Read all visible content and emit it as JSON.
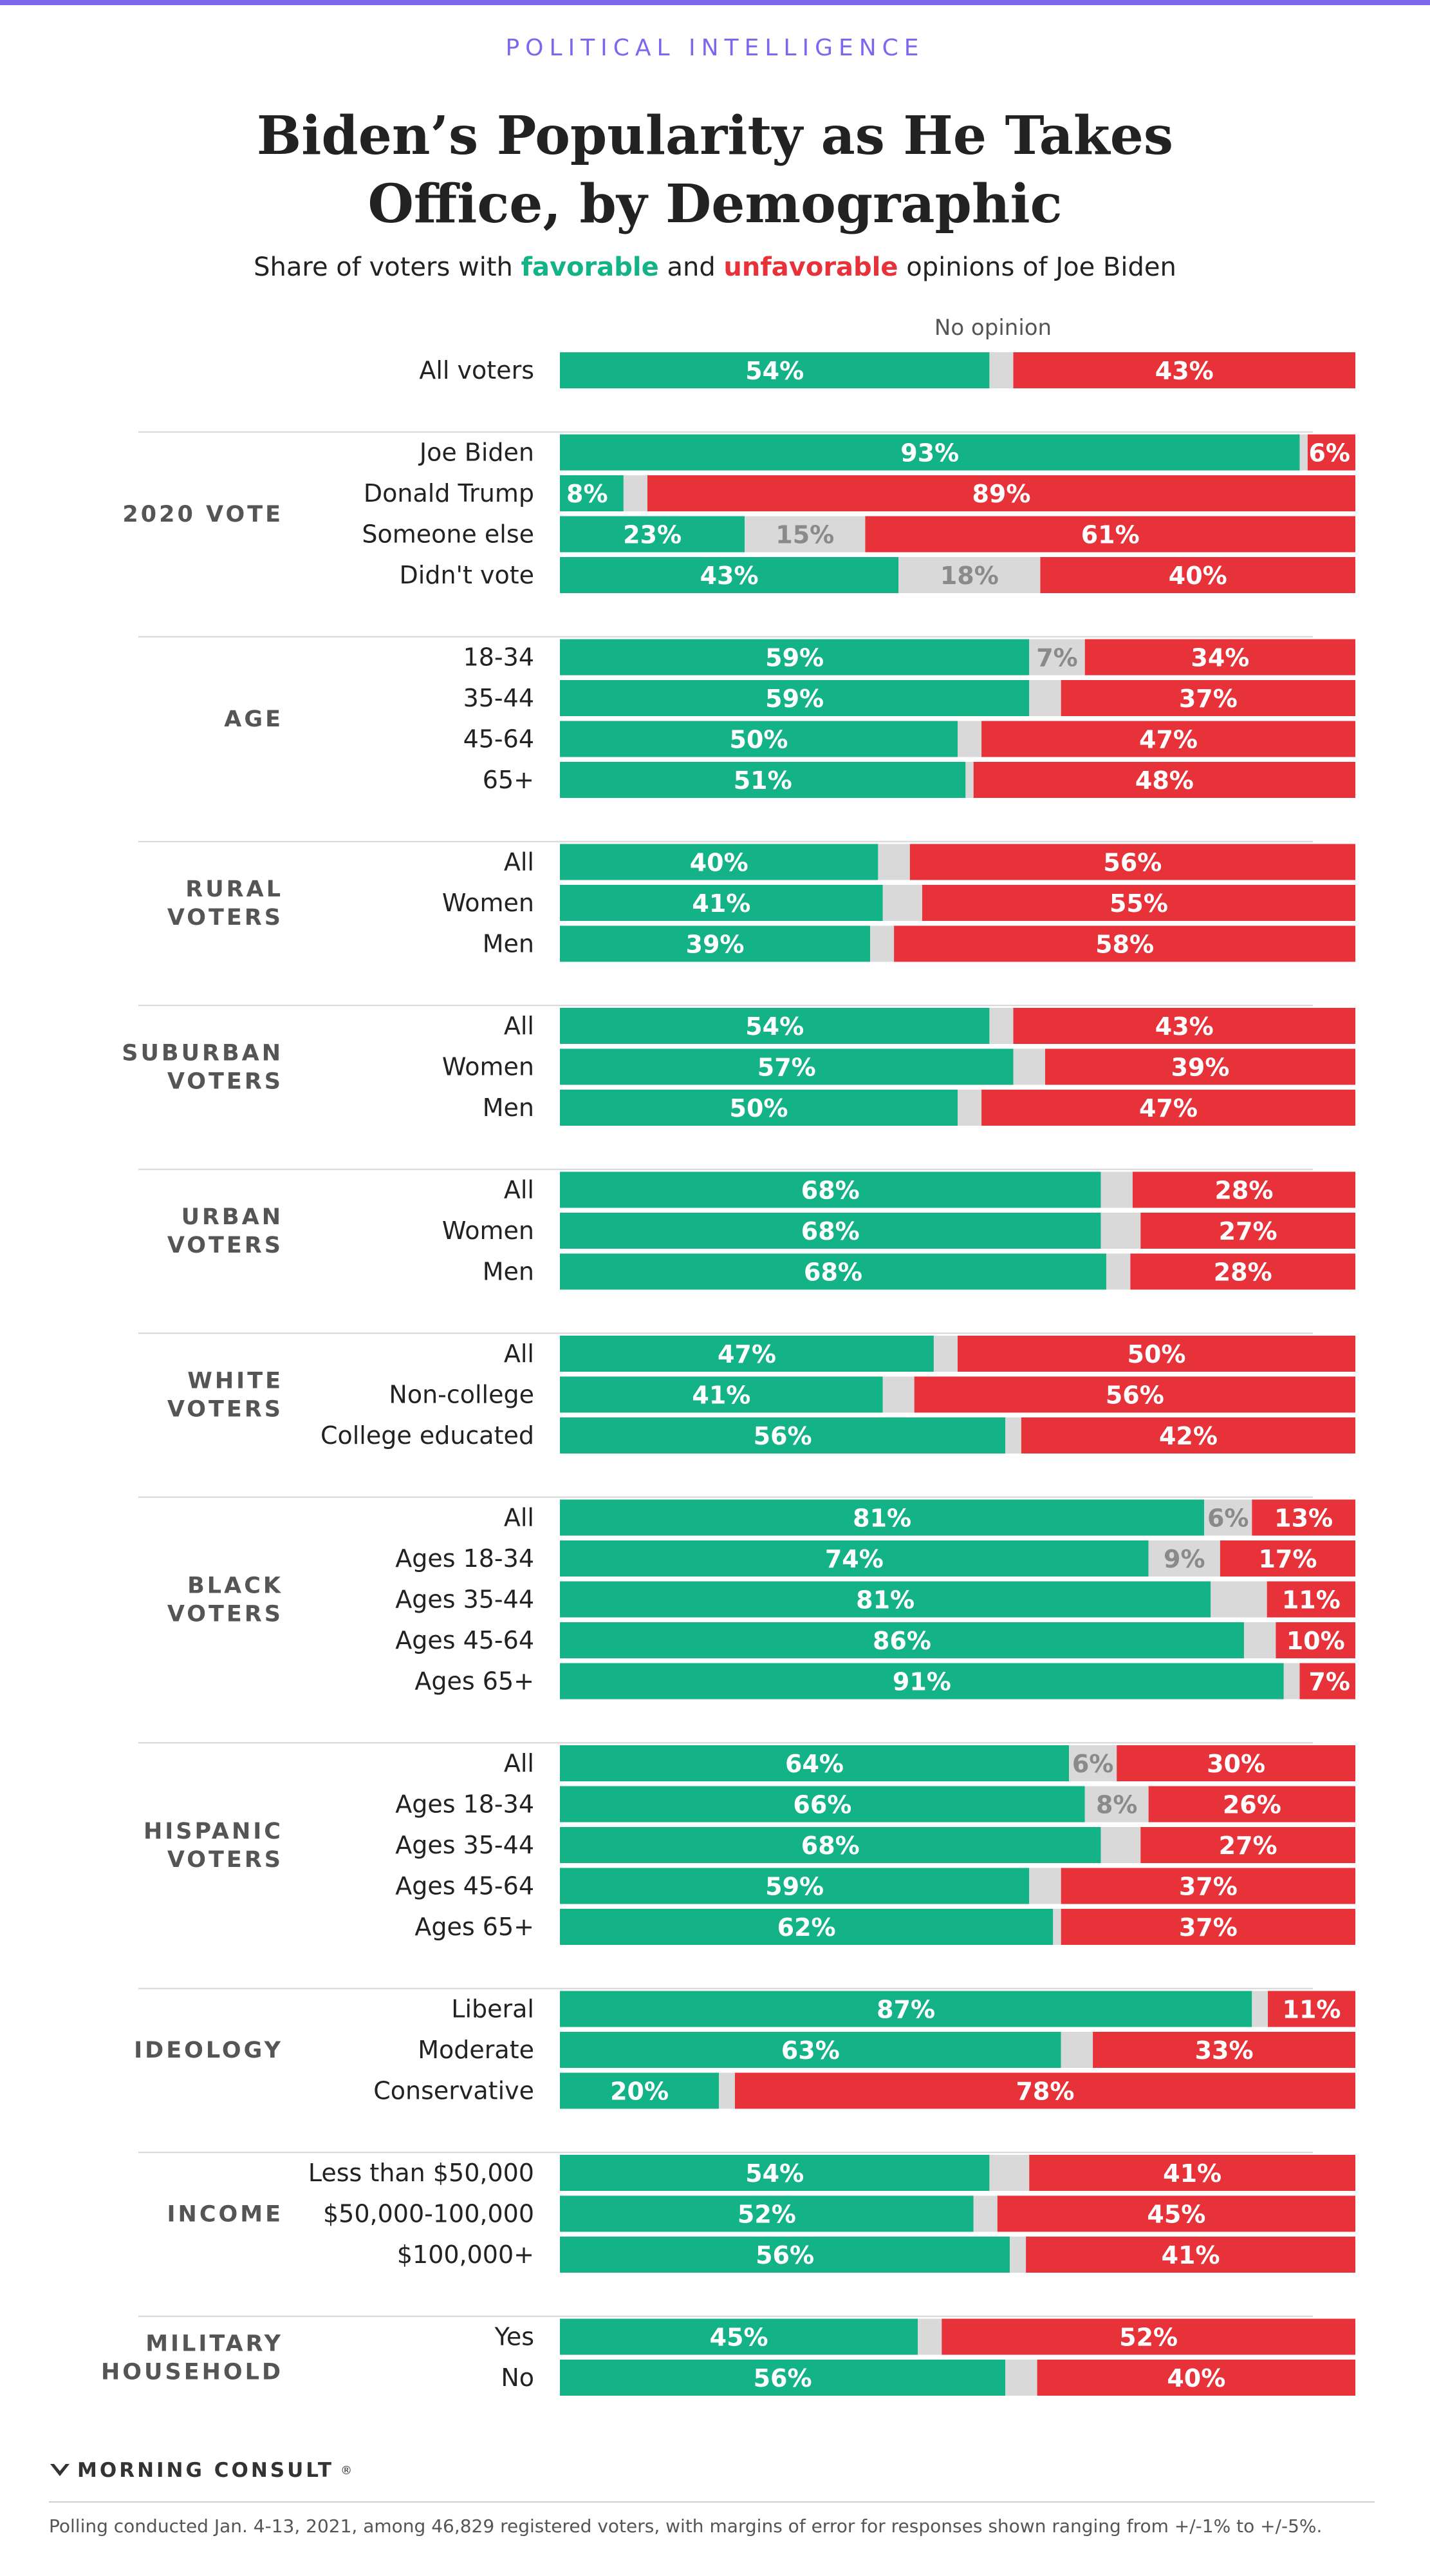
{
  "header": {
    "kicker": "POLITICAL INTELLIGENCE",
    "title_line1": "Biden’s Popularity as He Takes",
    "title_line2": "Office, by Demographic",
    "subtitle_pre": "Share of voters with ",
    "subtitle_fav": "favorable",
    "subtitle_mid": " and ",
    "subtitle_unfav": "unfavorable",
    "subtitle_post": " opinions of Joe Biden"
  },
  "colors": {
    "favorable": "#13b287",
    "no_opinion": "#d9d9d9",
    "unfavorable": "#e8323a",
    "accent": "#7b68ee"
  },
  "chart_data": {
    "type": "bar",
    "orientation": "horizontal",
    "stacked": true,
    "normalized": true,
    "series_names": [
      "favorable",
      "No opinion",
      "unfavorable"
    ],
    "no_opinion_label": "No opinion",
    "groups": [
      {
        "name": "",
        "rows": [
          {
            "label": "All voters",
            "fav": 54,
            "none": 3,
            "unfav": 43,
            "show_none": false
          }
        ]
      },
      {
        "name": "2020 VOTE",
        "rows": [
          {
            "label": "Joe Biden",
            "fav": 93,
            "none": 1,
            "unfav": 6,
            "show_none": false
          },
          {
            "label": "Donald Trump",
            "fav": 8,
            "none": 3,
            "unfav": 89,
            "show_none": false
          },
          {
            "label": "Someone else",
            "fav": 23,
            "none": 15,
            "unfav": 61,
            "show_none": true
          },
          {
            "label": "Didn't vote",
            "fav": 43,
            "none": 18,
            "unfav": 40,
            "show_none": true
          }
        ]
      },
      {
        "name": "AGE",
        "rows": [
          {
            "label": "18-34",
            "fav": 59,
            "none": 7,
            "unfav": 34,
            "show_none": true
          },
          {
            "label": "35-44",
            "fav": 59,
            "none": 4,
            "unfav": 37,
            "show_none": false
          },
          {
            "label": "45-64",
            "fav": 50,
            "none": 3,
            "unfav": 47,
            "show_none": false
          },
          {
            "label": "65+",
            "fav": 51,
            "none": 1,
            "unfav": 48,
            "show_none": false
          }
        ]
      },
      {
        "name": "RURAL VOTERS",
        "rows": [
          {
            "label": "All",
            "fav": 40,
            "none": 4,
            "unfav": 56,
            "show_none": false
          },
          {
            "label": "Women",
            "fav": 41,
            "none": 5,
            "unfav": 55,
            "show_none": false
          },
          {
            "label": "Men",
            "fav": 39,
            "none": 3,
            "unfav": 58,
            "show_none": false
          }
        ]
      },
      {
        "name": "SUBURBAN VOTERS",
        "rows": [
          {
            "label": "All",
            "fav": 54,
            "none": 3,
            "unfav": 43,
            "show_none": false
          },
          {
            "label": "Women",
            "fav": 57,
            "none": 4,
            "unfav": 39,
            "show_none": false
          },
          {
            "label": "Men",
            "fav": 50,
            "none": 3,
            "unfav": 47,
            "show_none": false
          }
        ]
      },
      {
        "name": "URBAN VOTERS",
        "rows": [
          {
            "label": "All",
            "fav": 68,
            "none": 4,
            "unfav": 28,
            "show_none": false
          },
          {
            "label": "Women",
            "fav": 68,
            "none": 5,
            "unfav": 27,
            "show_none": false
          },
          {
            "label": "Men",
            "fav": 68,
            "none": 3,
            "unfav": 28,
            "show_none": false
          }
        ]
      },
      {
        "name": "WHITE VOTERS",
        "rows": [
          {
            "label": "All",
            "fav": 47,
            "none": 3,
            "unfav": 50,
            "show_none": false
          },
          {
            "label": "Non-college",
            "fav": 41,
            "none": 4,
            "unfav": 56,
            "show_none": false
          },
          {
            "label": "College educated",
            "fav": 56,
            "none": 2,
            "unfav": 42,
            "show_none": false
          }
        ]
      },
      {
        "name": "BLACK VOTERS",
        "rows": [
          {
            "label": "All",
            "fav": 81,
            "none": 6,
            "unfav": 13,
            "show_none": true
          },
          {
            "label": "Ages 18-34",
            "fav": 74,
            "none": 9,
            "unfav": 17,
            "show_none": true
          },
          {
            "label": "Ages 35-44",
            "fav": 81,
            "none": 7,
            "unfav": 11,
            "show_none": false
          },
          {
            "label": "Ages 45-64",
            "fav": 86,
            "none": 4,
            "unfav": 10,
            "show_none": false
          },
          {
            "label": "Ages 65+",
            "fav": 91,
            "none": 2,
            "unfav": 7,
            "show_none": false
          }
        ]
      },
      {
        "name": "HISPANIC VOTERS",
        "rows": [
          {
            "label": "All",
            "fav": 64,
            "none": 6,
            "unfav": 30,
            "show_none": true
          },
          {
            "label": "Ages 18-34",
            "fav": 66,
            "none": 8,
            "unfav": 26,
            "show_none": true
          },
          {
            "label": "Ages 35-44",
            "fav": 68,
            "none": 5,
            "unfav": 27,
            "show_none": false
          },
          {
            "label": "Ages 45-64",
            "fav": 59,
            "none": 4,
            "unfav": 37,
            "show_none": false
          },
          {
            "label": "Ages 65+",
            "fav": 62,
            "none": 1,
            "unfav": 37,
            "show_none": false
          }
        ]
      },
      {
        "name": "IDEOLOGY",
        "rows": [
          {
            "label": "Liberal",
            "fav": 87,
            "none": 2,
            "unfav": 11,
            "show_none": false
          },
          {
            "label": "Moderate",
            "fav": 63,
            "none": 4,
            "unfav": 33,
            "show_none": false
          },
          {
            "label": "Conservative",
            "fav": 20,
            "none": 2,
            "unfav": 78,
            "show_none": false
          }
        ]
      },
      {
        "name": "INCOME",
        "rows": [
          {
            "label": "Less than $50,000",
            "fav": 54,
            "none": 5,
            "unfav": 41,
            "show_none": false
          },
          {
            "label": "$50,000-100,000",
            "fav": 52,
            "none": 3,
            "unfav": 45,
            "show_none": false
          },
          {
            "label": "$100,000+",
            "fav": 56,
            "none": 2,
            "unfav": 41,
            "show_none": false
          }
        ]
      },
      {
        "name": "MILITARY HOUSEHOLD",
        "rows": [
          {
            "label": "Yes",
            "fav": 45,
            "none": 3,
            "unfav": 52,
            "show_none": false
          },
          {
            "label": "No",
            "fav": 56,
            "none": 4,
            "unfav": 40,
            "show_none": false
          }
        ]
      }
    ]
  },
  "footer": {
    "logo_text": "MORNING CONSULT",
    "logo_mark": "®",
    "note": "Polling conducted Jan. 4-13, 2021, among 46,829 registered voters, with margins of error for responses shown ranging from +/-1% to +/-5%."
  }
}
